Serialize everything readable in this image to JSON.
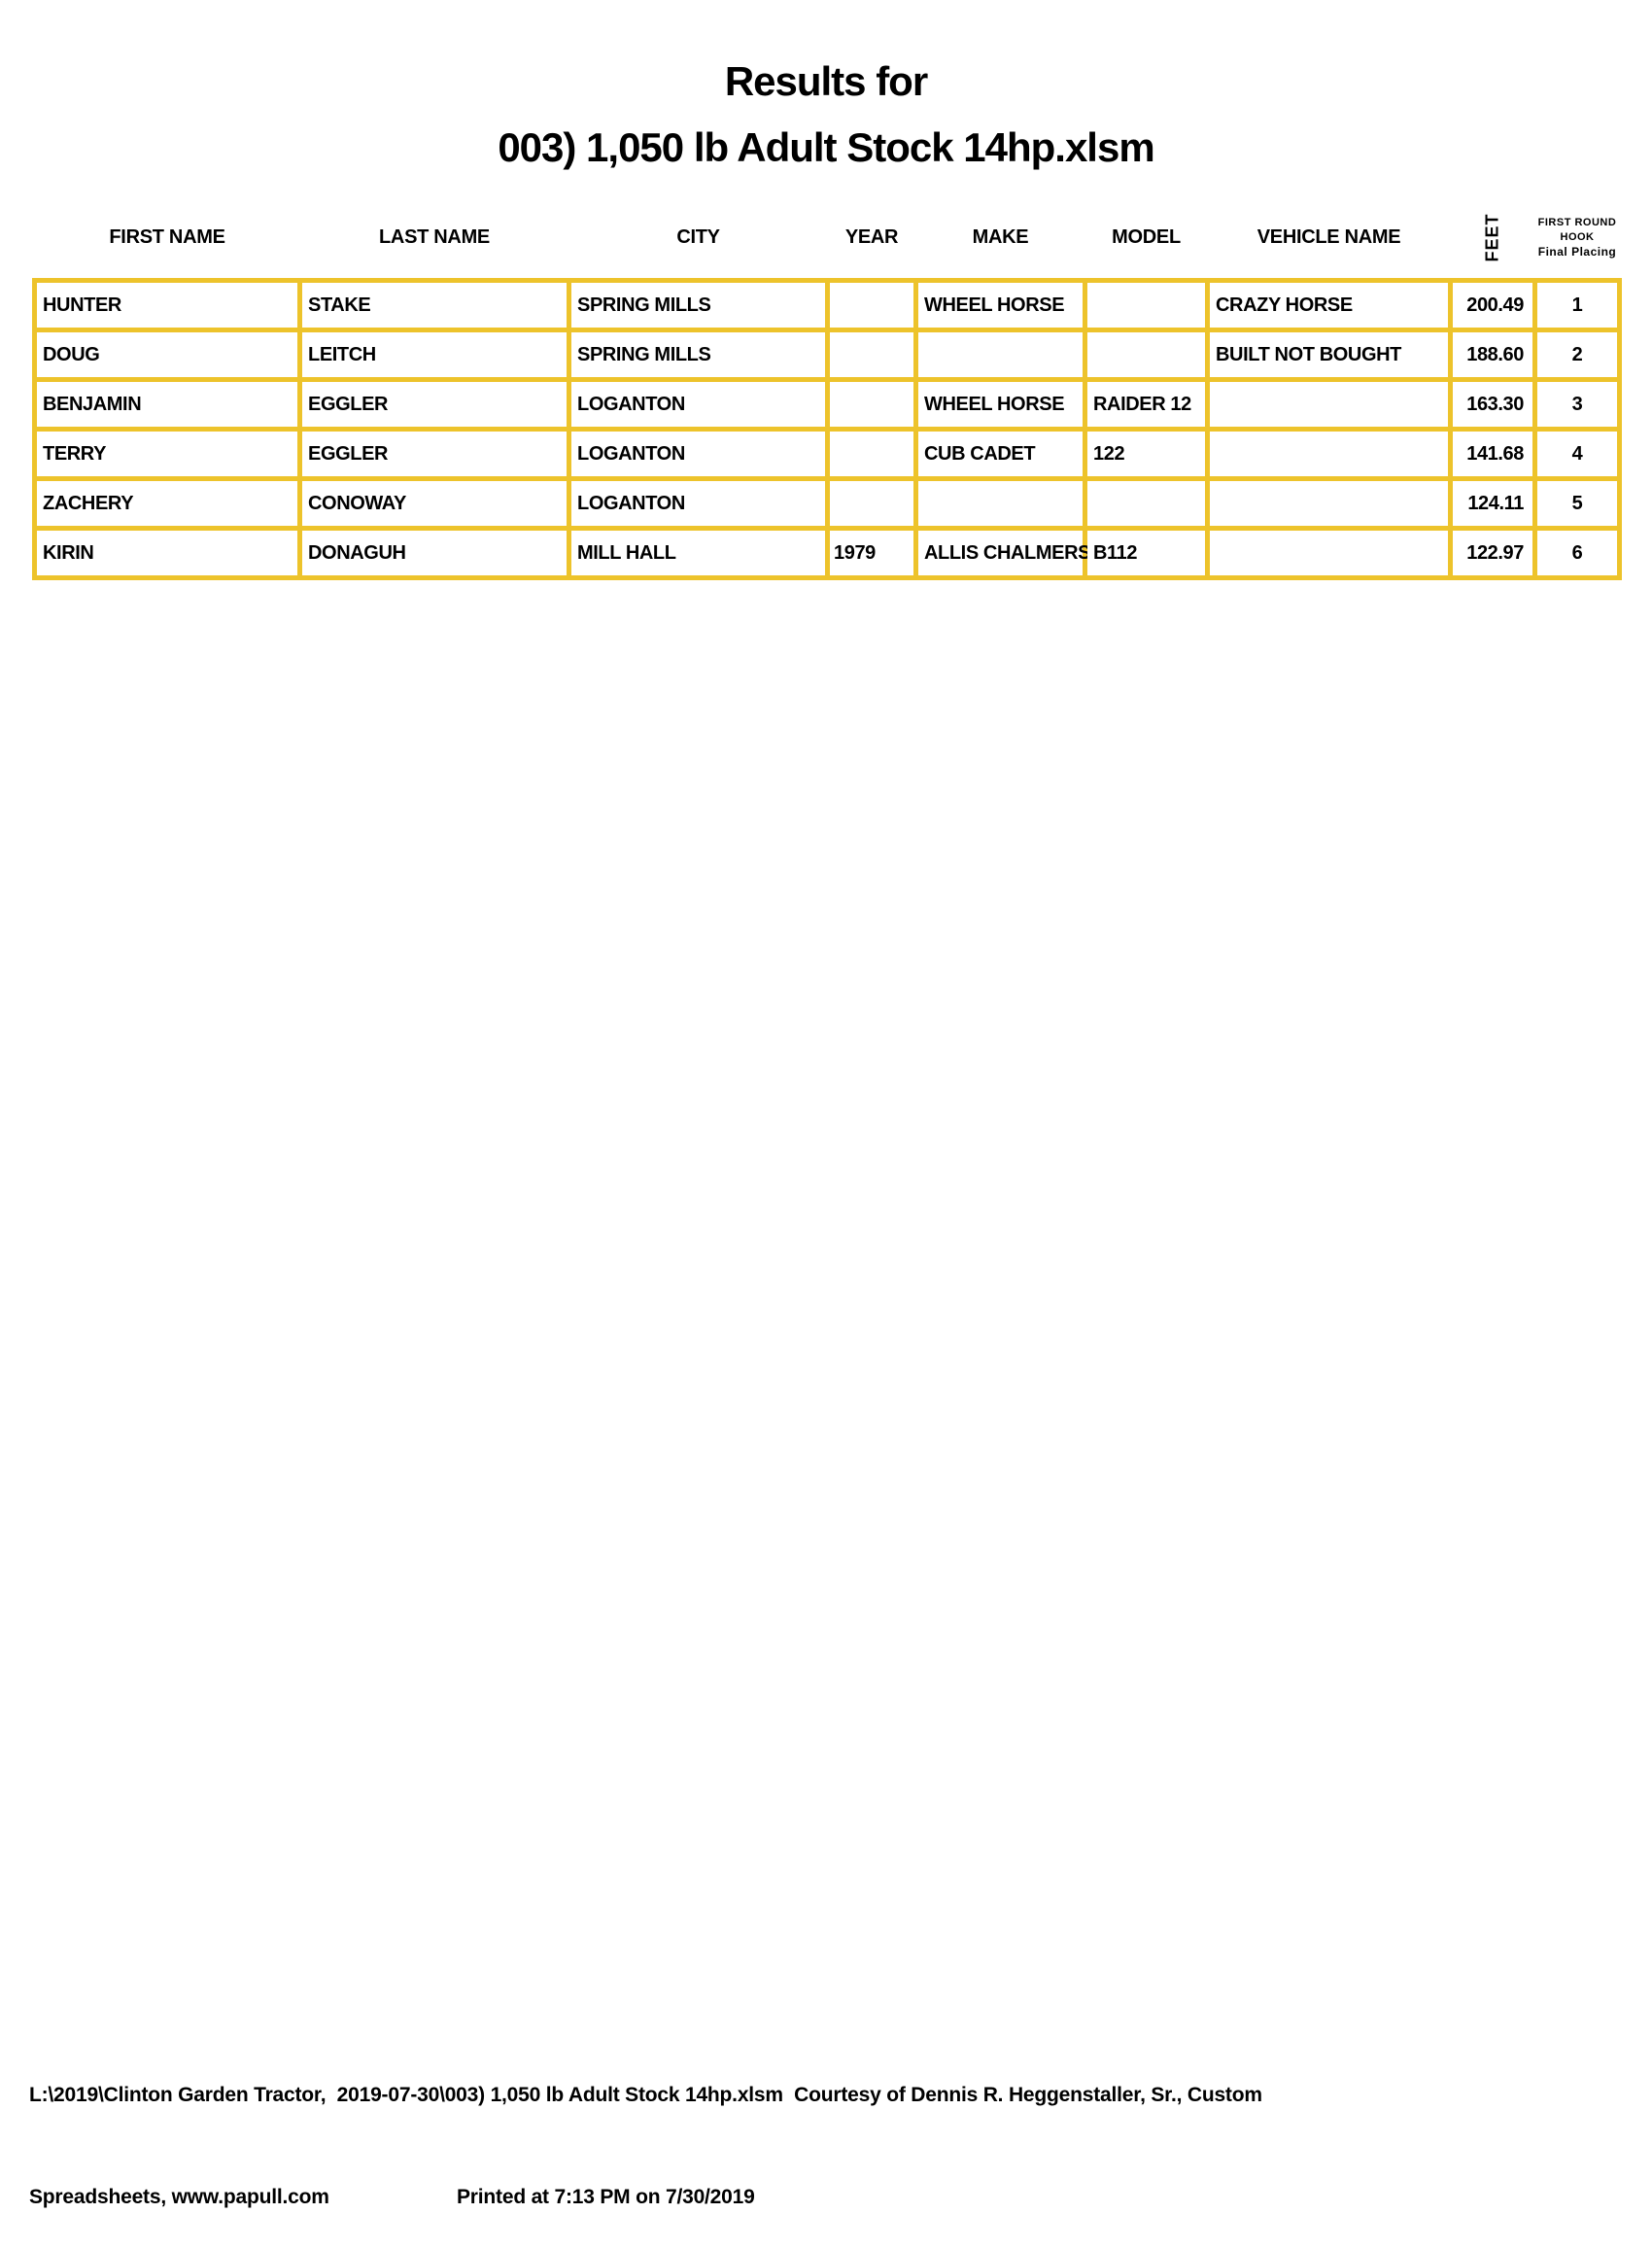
{
  "title": {
    "line1": "Results for",
    "line2": "003) 1,050 lb Adult Stock 14hp.xlsm"
  },
  "table": {
    "headers": {
      "first_name": "FIRST NAME",
      "last_name": "LAST NAME",
      "city": "CITY",
      "year": "YEAR",
      "make": "MAKE",
      "model": "MODEL",
      "vehicle_name": "VEHICLE NAME",
      "feet": "FEET",
      "hook_line1": "FIRST ROUND",
      "hook_line2": "HOOK",
      "hook_line3": "Final Placing"
    },
    "rows": [
      {
        "first_name": "HUNTER",
        "last_name": "STAKE",
        "city": "SPRING MILLS",
        "year": "",
        "make": "WHEEL HORSE",
        "model": "",
        "vehicle_name": "CRAZY HORSE",
        "feet": "200.49",
        "hook": "1"
      },
      {
        "first_name": "DOUG",
        "last_name": "LEITCH",
        "city": "SPRING MILLS",
        "year": "",
        "make": "",
        "model": "",
        "vehicle_name": "BUILT NOT BOUGHT",
        "feet": "188.60",
        "hook": "2"
      },
      {
        "first_name": "BENJAMIN",
        "last_name": "EGGLER",
        "city": "LOGANTON",
        "year": "",
        "make": "WHEEL HORSE",
        "model": "RAIDER 12",
        "vehicle_name": "",
        "feet": "163.30",
        "hook": "3"
      },
      {
        "first_name": "TERRY",
        "last_name": "EGGLER",
        "city": "LOGANTON",
        "year": "",
        "make": "CUB CADET",
        "model": "122",
        "vehicle_name": "",
        "feet": "141.68",
        "hook": "4"
      },
      {
        "first_name": "ZACHERY",
        "last_name": "CONOWAY",
        "city": "LOGANTON",
        "year": "",
        "make": "",
        "model": "",
        "vehicle_name": "",
        "feet": "124.11",
        "hook": "5"
      },
      {
        "first_name": "KIRIN",
        "last_name": "DONAGUH",
        "city": "MILL HALL",
        "year": "1979",
        "make": "ALLIS CHALMERS",
        "model": "B112",
        "vehicle_name": "",
        "feet": "122.97",
        "hook": "6"
      }
    ]
  },
  "footer": {
    "line1": "L:\\2019\\Clinton Garden Tractor,  2019-07-30\\003) 1,050 lb Adult Stock 14hp.xlsm  Courtesy of Dennis R. Heggenstaller, Sr., Custom",
    "line2_left": "Spreadsheets, www.papull.com",
    "line2_right": "Printed at 7:13 PM on 7/30/2019"
  },
  "colors": {
    "grid": "#EDC32B",
    "text": "#000000"
  }
}
